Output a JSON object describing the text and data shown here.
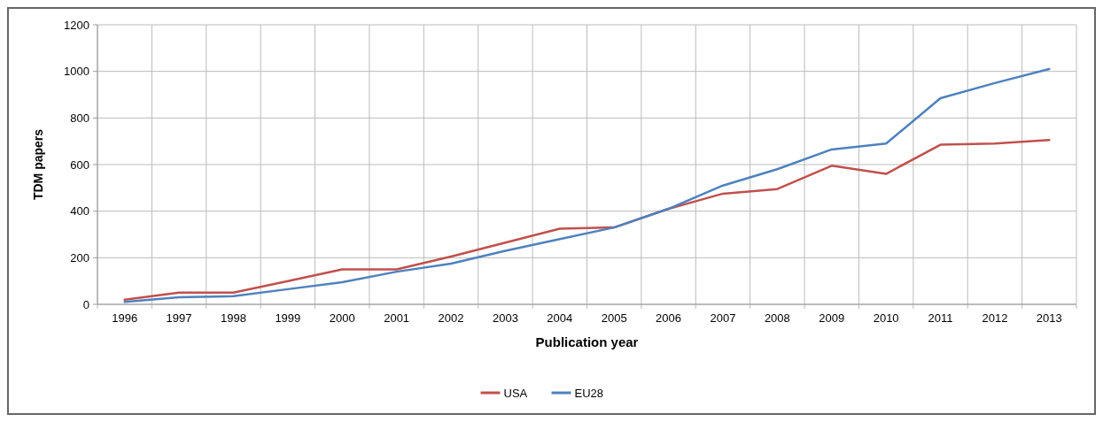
{
  "chart_data": {
    "type": "line",
    "xlabel": "Publication year",
    "ylabel": "TDM papers",
    "categories": [
      "1996",
      "1997",
      "1998",
      "1999",
      "2000",
      "2001",
      "2002",
      "2003",
      "2004",
      "2005",
      "2006",
      "2007",
      "2008",
      "2009",
      "2010",
      "2011",
      "2012",
      "2013"
    ],
    "series": [
      {
        "name": "USA",
        "color": "#c0504d",
        "values": [
          20,
          50,
          50,
          100,
          150,
          150,
          205,
          265,
          325,
          330,
          410,
          475,
          495,
          595,
          560,
          685,
          690,
          705
        ]
      },
      {
        "name": "EU28",
        "color": "#4f81bd",
        "values": [
          10,
          30,
          35,
          65,
          95,
          140,
          175,
          230,
          280,
          330,
          410,
          510,
          580,
          665,
          690,
          885,
          950,
          1010
        ]
      }
    ],
    "ylim": [
      0,
      1200
    ],
    "yticks": [
      0,
      200,
      400,
      600,
      800,
      1000,
      1200
    ],
    "grid": true,
    "legend": "bottom",
    "marker": "none",
    "line_style": "solid"
  }
}
